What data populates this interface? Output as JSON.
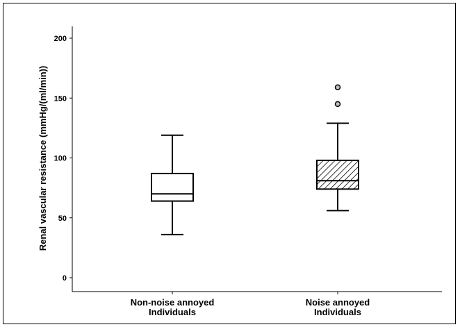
{
  "chart_data": {
    "type": "box",
    "ylabel": "Renal vascular resistance (mmHg/(ml/min))",
    "xlabel": "",
    "ylim": [
      0,
      200
    ],
    "yticks": [
      0,
      50,
      100,
      150,
      200
    ],
    "grid": false,
    "legend": "none",
    "categories": [
      {
        "line1": "Non-noise annoyed",
        "line2": "Individuals"
      },
      {
        "line1": "Noise annoyed",
        "line2": "Individuals"
      }
    ],
    "boxes": [
      {
        "min": 36,
        "q1": 64,
        "median": 70,
        "q3": 87,
        "max": 119,
        "outliers": [],
        "fill": "plain"
      },
      {
        "min": 56,
        "q1": 74,
        "median": 81,
        "q3": 98,
        "max": 129,
        "outliers": [
          145,
          159
        ],
        "fill": "hatched"
      }
    ],
    "colors": {
      "box_fill": "#ffffff",
      "stroke": "#000000",
      "outlier_fill": "#c0c0c0"
    }
  }
}
